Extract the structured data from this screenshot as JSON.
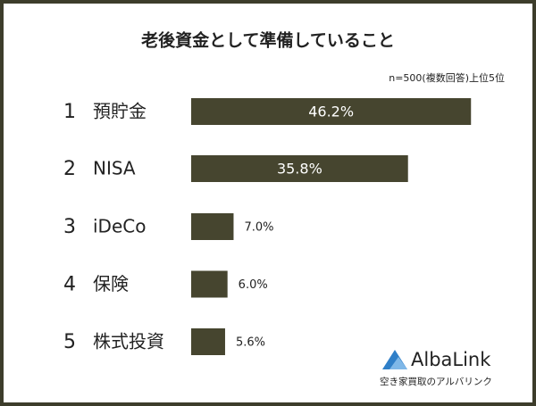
{
  "chart_data": {
    "type": "bar",
    "orientation": "horizontal",
    "title": "老後資金として準備していること",
    "subtitle": "n=500(複数回答)上位5位",
    "ranks": [
      1,
      2,
      3,
      4,
      5
    ],
    "categories": [
      "預貯金",
      "NISA",
      "iDeCo",
      "保険",
      "株式投資"
    ],
    "values": [
      46.2,
      35.8,
      7.0,
      6.0,
      5.6
    ],
    "value_labels": [
      "46.2%",
      "35.8%",
      "7.0%",
      "6.0%",
      "5.6%"
    ],
    "color": "#46452f"
  },
  "logo": {
    "name": "AlbaLink",
    "tagline": "空き家買取のアルバリンク"
  }
}
